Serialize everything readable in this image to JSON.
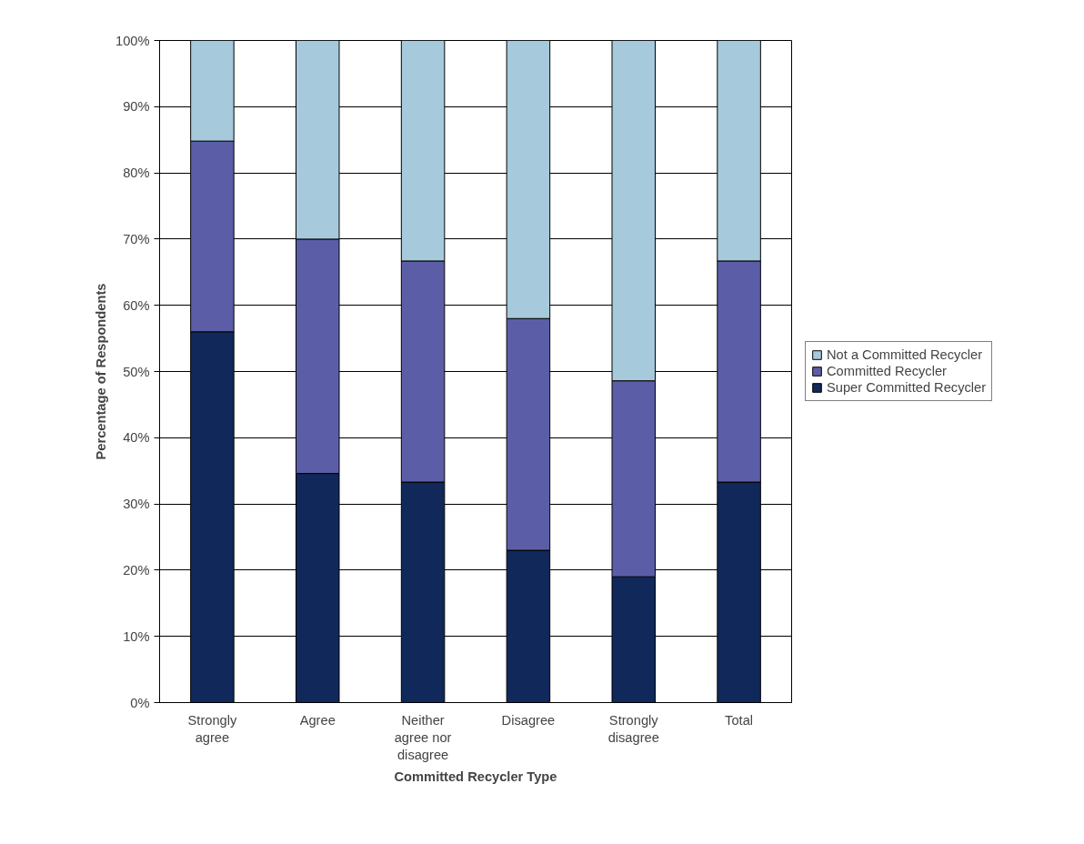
{
  "chart_data": {
    "type": "bar",
    "stacked": true,
    "xlabel": "Committed Recycler Type",
    "ylabel": "Percentage of Respondents",
    "categories": [
      "Strongly agree",
      "Agree",
      "Neither agree nor disagree",
      "Disagree",
      "Strongly disagree",
      "Total"
    ],
    "series": [
      {
        "name": "Super Committed Recycler",
        "color": "#10295a",
        "values": [
          56,
          34.6,
          33.3,
          23,
          19,
          33.3
        ]
      },
      {
        "name": "Committed Recycler",
        "color": "#5b5ea6",
        "values": [
          28.8,
          35.4,
          33.4,
          35,
          29.6,
          33.4
        ]
      },
      {
        "name": "Not a Committed Recycler",
        "color": "#a6cadc",
        "values": [
          15.2,
          30,
          33.3,
          42,
          51.4,
          33.3
        ]
      }
    ],
    "ylim": [
      0,
      100
    ],
    "yticks": [
      {
        "value": 0,
        "label": "0%"
      },
      {
        "value": 10,
        "label": "10%"
      },
      {
        "value": 20,
        "label": "20%"
      },
      {
        "value": 30,
        "label": "30%"
      },
      {
        "value": 40,
        "label": "40%"
      },
      {
        "value": 50,
        "label": "50%"
      },
      {
        "value": 60,
        "label": "60%"
      },
      {
        "value": 70,
        "label": "70%"
      },
      {
        "value": 80,
        "label": "80%"
      },
      {
        "value": 90,
        "label": "90%"
      },
      {
        "value": 100,
        "label": "100%"
      }
    ],
    "grid": "y",
    "legend": "right"
  }
}
